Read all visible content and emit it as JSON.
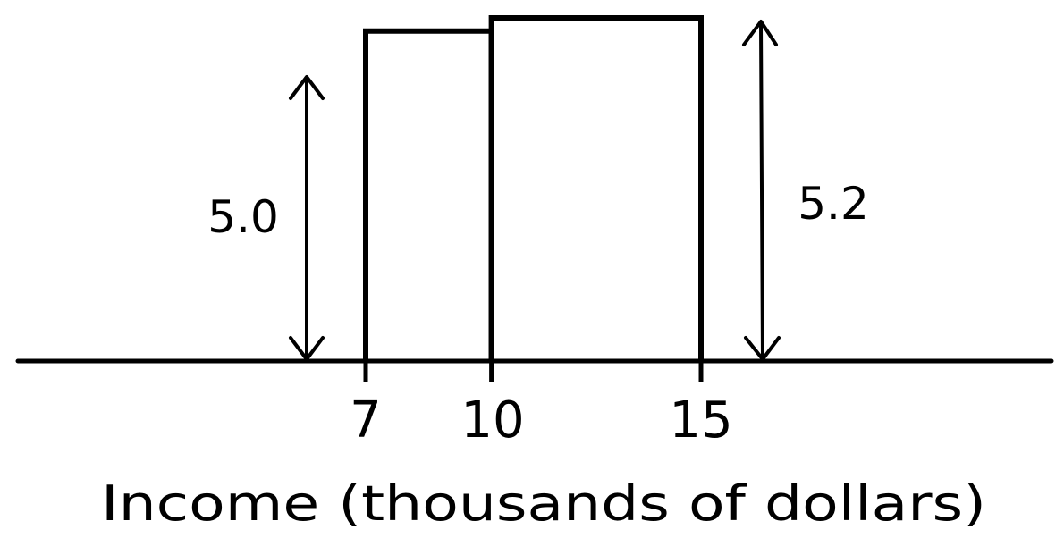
{
  "chart_data": {
    "type": "bar",
    "xlabel": "Income (thousands of dollars)",
    "ylabel": "",
    "title": "",
    "bins": [
      {
        "from": 7,
        "to": 10,
        "height": 5.0
      },
      {
        "from": 10,
        "to": 15,
        "height": 5.2
      }
    ],
    "ticks": [
      "7",
      "10",
      "15"
    ],
    "annotations": [
      "5.0",
      "5.2"
    ],
    "grid": false
  }
}
